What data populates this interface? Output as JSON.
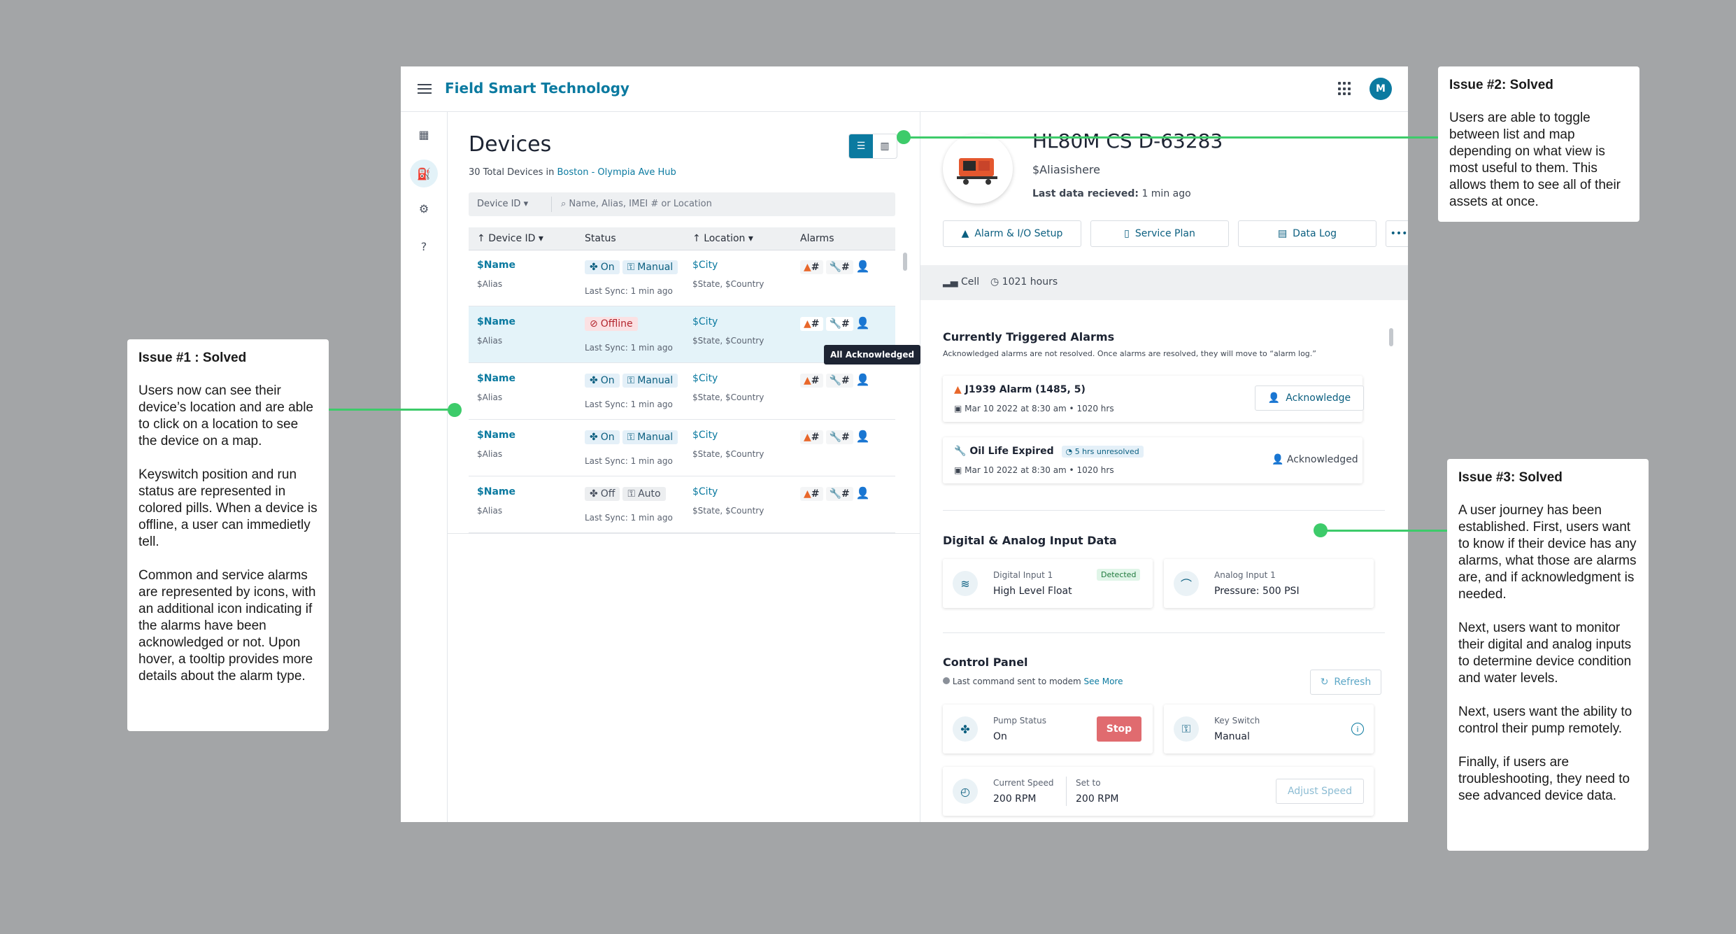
{
  "app": {
    "brand": "Field Smart Technology",
    "avatar": "M"
  },
  "sidenav": {
    "items": [
      "dashboard-icon",
      "devices-icon",
      "settings-icon",
      "help-icon"
    ]
  },
  "devices": {
    "title": "Devices",
    "total_prefix": "30 Total Devices in ",
    "location": "Boston - Olympia Ave Hub",
    "filter_select": "Device ID",
    "search_placeholder": "Name, Alias, IMEI # or Location",
    "headers": {
      "device_id": "Device ID",
      "status": "Status",
      "location": "Location",
      "alarms": "Alarms"
    },
    "rows": [
      {
        "name": "$Name",
        "alias": "$Alias",
        "run": "On",
        "key": "Manual",
        "sync": "Last Sync: 1 min ago",
        "city": "$City",
        "state": "$State, $Country",
        "alarm1": "#",
        "alarm2": "#"
      },
      {
        "name": "$Name",
        "alias": "$Alias",
        "run": "Offline",
        "key": "",
        "sync": "Last Sync: 1 min ago",
        "city": "$City",
        "state": "$State, $Country",
        "alarm1": "#",
        "alarm2": "#"
      },
      {
        "name": "$Name",
        "alias": "$Alias",
        "run": "On",
        "key": "Manual",
        "sync": "Last Sync: 1 min ago",
        "city": "$City",
        "state": "$State, $Country",
        "alarm1": "#",
        "alarm2": "#"
      },
      {
        "name": "$Name",
        "alias": "$Alias",
        "run": "On",
        "key": "Manual",
        "sync": "Last Sync: 1 min ago",
        "city": "$City",
        "state": "$State, $Country",
        "alarm1": "#",
        "alarm2": "#"
      },
      {
        "name": "$Name",
        "alias": "$Alias",
        "run": "Off",
        "key": "Auto",
        "sync": "Last Sync: 1 min ago",
        "city": "$City",
        "state": "$State, $Country",
        "alarm1": "#",
        "alarm2": "#"
      }
    ],
    "tooltip": "All Acknowledged"
  },
  "detail": {
    "title": "HL80M CS D-63283",
    "alias": "$Aliasishere",
    "last_data_label": "Last data recieved:",
    "last_data_value": "1 min ago",
    "buttons": {
      "alarm": "Alarm & I/O Setup",
      "service": "Service Plan",
      "datalog": "Data Log"
    },
    "band": {
      "cell": "Cell",
      "hours": "1021 hours"
    },
    "alarms": {
      "title": "Currently Triggered Alarms",
      "subtitle": "Acknowledged alarms are not resolved. Once alarms are resolved, they will move to “alarm log.”",
      "items": [
        {
          "name": "J1939 Alarm (1485, 5)",
          "date": "Mar 10 2022 at 8:30 am • 1020 hrs",
          "action": "Acknowledge"
        },
        {
          "name": "Oil Life Expired",
          "badge": "5 hrs unresolved",
          "date": "Mar 10 2022 at 8:30 am • 1020 hrs",
          "action": "Acknowledged"
        }
      ]
    },
    "inputs": {
      "title": "Digital & Analog Input Data",
      "digital_label": "Digital Input 1",
      "digital_value": "High Level Float",
      "digital_badge": "Detected",
      "analog_label": "Analog Input 1",
      "analog_value": "Pressure: 500 PSI"
    },
    "control": {
      "title": "Control Panel",
      "last_cmd": "Last command sent to modem",
      "see_more": "See More",
      "refresh": "Refresh",
      "pump_label": "Pump Status",
      "pump_value": "On",
      "stop": "Stop",
      "key_label": "Key Switch",
      "key_value": "Manual",
      "speed_label": "Current Speed",
      "speed_value": "200 RPM",
      "set_label": "Set to",
      "set_value": "200 RPM",
      "adjust": "Adjust Speed"
    }
  },
  "notes": {
    "issue1": {
      "title": "Issue #1 : Solved",
      "p1": "Users now can see their device’s location and are able to click on a location to see the device on a map.",
      "p2": "Keyswitch position and run status are represented in colored pills. When a device is offline, a user can immedietly tell.",
      "p3": "Common and service alarms are represented by icons, with an additional icon indicating if the alarms have been acknowledged or not. Upon hover, a tooltip provides more details about the alarm type."
    },
    "issue2": {
      "title": "Issue #2: Solved",
      "p1": "Users are able to toggle between list and map depending on what view is most useful to them. This allows them to see all of their assets at once."
    },
    "issue3": {
      "title": "Issue #3: Solved",
      "p1": "A user journey has been established. First, users want to know if their device has any alarms, what those are alarms are, and if acknowledgment is needed.",
      "p2": "Next, users want to monitor their digital and analog inputs to determine device condition and water levels.",
      "p3": "Next, users want the ability to control their pump remotely.",
      "p4": "Finally, if users are troubleshooting, they need to see advanced device data."
    }
  }
}
